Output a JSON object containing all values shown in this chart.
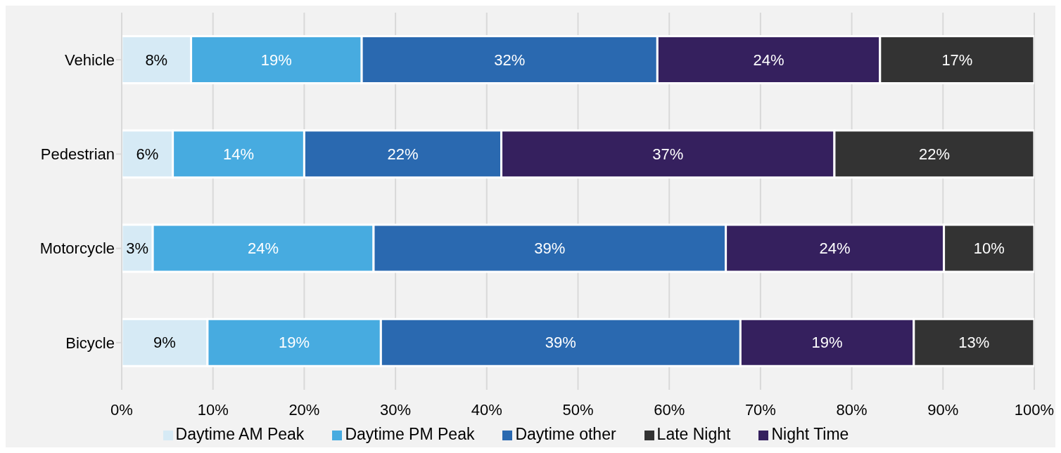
{
  "chart_data": {
    "type": "bar",
    "orientation": "horizontal",
    "stacked": true,
    "categories": [
      "Vehicle",
      "Pedestrian",
      "Motorcycle",
      "Bicycle"
    ],
    "series": [
      {
        "name": "Daytime AM Peak",
        "color": "#d6eaf5",
        "values": [
          7.6,
          5.6,
          3.4,
          9.4
        ],
        "value_labels": [
          "8%",
          "6%",
          "3%",
          "9%"
        ]
      },
      {
        "name": "Daytime PM Peak",
        "color": "#47abe0",
        "values": [
          18.7,
          14.4,
          24.2,
          19.0
        ],
        "value_labels": [
          "19%",
          "14%",
          "24%",
          "19%"
        ]
      },
      {
        "name": "Daytime other",
        "color": "#2a69b0",
        "values": [
          32.4,
          21.6,
          38.6,
          39.4
        ],
        "value_labels": [
          "32%",
          "22%",
          "39%",
          "39%"
        ]
      },
      {
        "name": "Night Time",
        "color": "#35205e",
        "values": [
          24.4,
          36.5,
          23.9,
          19.0
        ],
        "value_labels": [
          "24%",
          "37%",
          "24%",
          "19%"
        ]
      },
      {
        "name": "Late Night",
        "color": "#333333",
        "values": [
          16.9,
          21.9,
          9.9,
          13.2
        ],
        "value_labels": [
          "17%",
          "22%",
          "10%",
          "13%"
        ]
      }
    ],
    "xlim": [
      0,
      100
    ],
    "xticks": [
      {
        "value": 0,
        "label": "0%"
      },
      {
        "value": 10,
        "label": "10%"
      },
      {
        "value": 20,
        "label": "20%"
      },
      {
        "value": 30,
        "label": "30%"
      },
      {
        "value": 40,
        "label": "40%"
      },
      {
        "value": 50,
        "label": "50%"
      },
      {
        "value": 60,
        "label": "60%"
      },
      {
        "value": 70,
        "label": "70%"
      },
      {
        "value": 80,
        "label": "80%"
      },
      {
        "value": 90,
        "label": "90%"
      },
      {
        "value": 100,
        "label": "100%"
      }
    ],
    "grid": "x",
    "legend": "bottom"
  }
}
